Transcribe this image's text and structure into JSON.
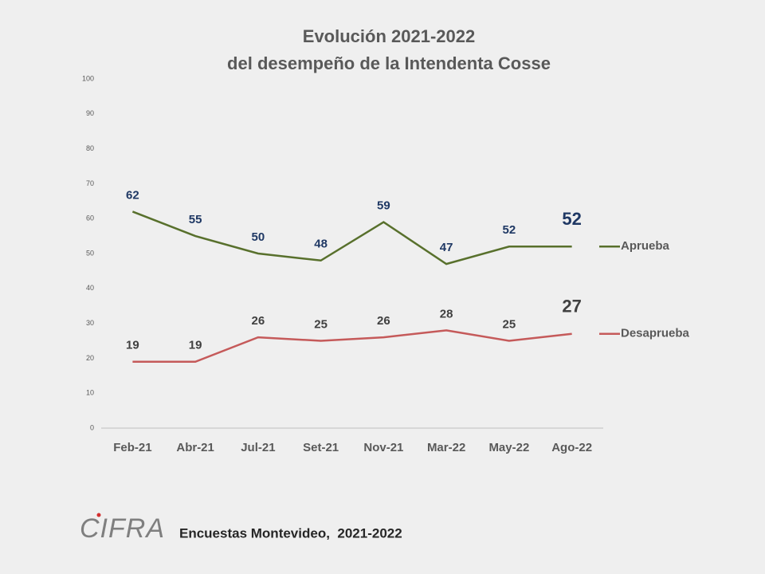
{
  "chart_data": {
    "type": "line",
    "title": [
      "Evolución 2021-2022",
      "del desempeño de la Intendenta Cosse"
    ],
    "categories": [
      "Feb-21",
      "Abr-21",
      "Jul-21",
      "Set-21",
      "Nov-21",
      "Mar-22",
      "May-22",
      "Ago-22"
    ],
    "series": [
      {
        "name": "Aprueba",
        "color": "#58702c",
        "label_color": "#1f3864",
        "values": [
          62,
          55,
          50,
          48,
          59,
          47,
          52,
          52
        ]
      },
      {
        "name": "Desaprueba",
        "color": "#c55a5a",
        "label_color": "#404040",
        "values": [
          19,
          19,
          26,
          25,
          26,
          28,
          25,
          27
        ]
      }
    ],
    "ylim": [
      0,
      100
    ],
    "yticks": [
      0,
      10,
      20,
      30,
      40,
      50,
      60,
      70,
      80,
      90,
      100
    ],
    "grid": false,
    "footer": "Encuestas Montevideo,  2021-2022",
    "logo": "CIFRA"
  }
}
